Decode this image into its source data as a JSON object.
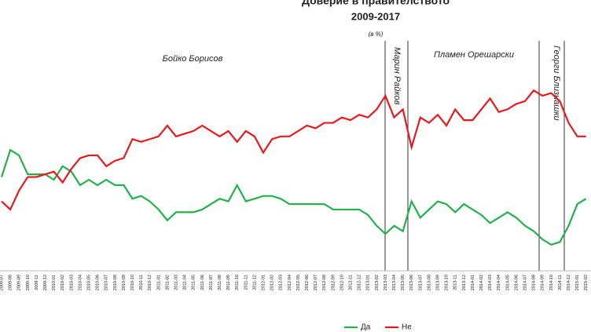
{
  "chart_data": {
    "type": "line",
    "title": "Доверие в правителството",
    "subtitle": "2009-2017",
    "unit_note": "(в %)",
    "annotations": [
      "Бойко Борисов",
      "Марин Райков",
      "Пламен Орешарски",
      "Георги Близнашки"
    ],
    "categories": [
      "2009-07",
      "2009-08",
      "2009-09",
      "2009-10",
      "2009-11",
      "2009-12",
      "2010-01",
      "2010-02",
      "2010-03",
      "2010-04",
      "2010-05",
      "2010-06",
      "2010-07",
      "2010-08",
      "2010-09",
      "2010-10",
      "2010-11",
      "2010-12",
      "2011-01",
      "2011-02",
      "2011-03",
      "2011-04",
      "2011-05",
      "2011-06",
      "2011-07",
      "2011-08",
      "2011-09",
      "2011-10",
      "2011-11",
      "2011-12",
      "2012-01",
      "2012-02",
      "2012-03",
      "2012-04",
      "2012-05",
      "2012-06",
      "2012-07",
      "2012-08",
      "2012-09",
      "2012-10",
      "2012-11",
      "2012-12",
      "2013-01",
      "2013-02",
      "2013-03",
      "2013-04",
      "2013-05",
      "2013-06",
      "2013-07",
      "2013-08",
      "2013-09",
      "2013-10",
      "2013-11",
      "2013-12",
      "2014-01",
      "2014-02",
      "2014-03",
      "2014-04",
      "2014-05",
      "2014-06",
      "2014-07",
      "2014-08",
      "2014-09",
      "2014-10",
      "2014-11",
      "2014-12",
      "2015-01",
      "2015-02"
    ],
    "series": [
      {
        "name": "Да",
        "color": "#22b14c",
        "values": [
          41,
          51,
          49,
          42,
          42,
          42,
          40,
          45,
          43,
          38,
          40,
          38,
          40,
          38,
          38,
          33,
          34,
          32,
          29,
          25,
          28,
          28,
          28,
          29,
          31,
          33,
          32,
          38,
          32,
          33,
          34,
          34,
          33,
          31,
          31,
          31,
          31,
          31,
          29,
          29,
          29,
          29,
          27,
          23,
          20,
          23,
          21,
          32,
          26,
          29,
          32,
          31,
          28,
          31,
          29,
          27,
          24,
          26,
          28,
          26,
          23,
          21,
          18,
          16,
          17,
          23,
          31,
          33
        ]
      },
      {
        "name": "Не",
        "color": "#e8191c",
        "values": [
          32,
          29,
          36,
          41,
          41,
          42,
          43,
          39,
          44,
          48,
          49,
          49,
          45,
          47,
          48,
          55,
          54,
          55,
          56,
          60,
          56,
          57,
          58,
          60,
          58,
          56,
          58,
          54,
          58,
          56,
          50,
          55,
          56,
          56,
          58,
          60,
          59,
          61,
          61,
          63,
          62,
          64,
          63,
          66,
          71,
          63,
          66,
          52,
          63,
          61,
          64,
          60,
          66,
          62,
          62,
          66,
          70,
          65,
          66,
          68,
          69,
          73,
          71,
          72,
          69,
          61,
          56,
          56
        ]
      }
    ],
    "ylim": [
      5,
      85
    ]
  }
}
